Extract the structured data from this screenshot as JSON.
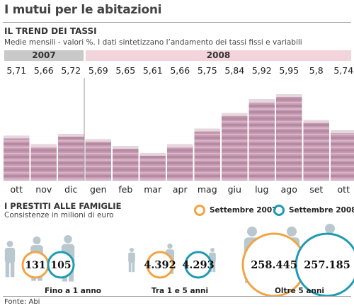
{
  "header": {
    "title": "I mutui per le abitazioni"
  },
  "colors": {
    "ring_2007": "#f2a445",
    "ring_2008": "#1f9bb3",
    "band_2007": "#c9c9c9",
    "band_2008": "#f3d4dc",
    "banknote_face": "#c79ab2",
    "banknote_edge": "#b48aa2",
    "silhouette": "#b9c8cf"
  },
  "chart_data": [
    {
      "type": "bar",
      "title": "IL TREND DEI TASSI",
      "subtitle": "Medie mensili -  valori %. I dati sintetizzano l’andamento dei tassi fissi e variabili",
      "year_groups": [
        {
          "label": "2007",
          "months": 3
        },
        {
          "label": "2008",
          "months": 10
        }
      ],
      "categories": [
        "ott",
        "nov",
        "dic",
        "gen",
        "feb",
        "mar",
        "apr",
        "mag",
        "giu",
        "lug",
        "ago",
        "set",
        "ott"
      ],
      "values": [
        5.71,
        5.66,
        5.72,
        5.69,
        5.65,
        5.61,
        5.66,
        5.75,
        5.84,
        5.92,
        5.95,
        5.8,
        5.74
      ],
      "value_labels": [
        "5,71",
        "5,66",
        "5,72",
        "5,69",
        "5,65",
        "5,61",
        "5,66",
        "5,75",
        "5,84",
        "5,92",
        "5,95",
        "5,8",
        "5,74"
      ],
      "xlabel": "",
      "ylabel": ""
    },
    {
      "type": "bubble",
      "title": "I PRESTITI ALLE FAMIGLIE",
      "subtitle": "Consistenze in milioni di euro",
      "categories": [
        "Fino a 1 anno",
        "Tra 1 e 5 anni",
        "Oltre 5 anni"
      ],
      "series": [
        {
          "name": "Settembre 2007",
          "values": [
            131,
            4392,
            258445
          ],
          "labels": [
            "131",
            "4.392",
            "258.445"
          ]
        },
        {
          "name": "Settembre 2008",
          "values": [
            105,
            4293,
            257185
          ],
          "labels": [
            "105",
            "4.293",
            "257.185"
          ]
        }
      ]
    }
  ],
  "footer": {
    "source": "Fonte: Abi"
  }
}
